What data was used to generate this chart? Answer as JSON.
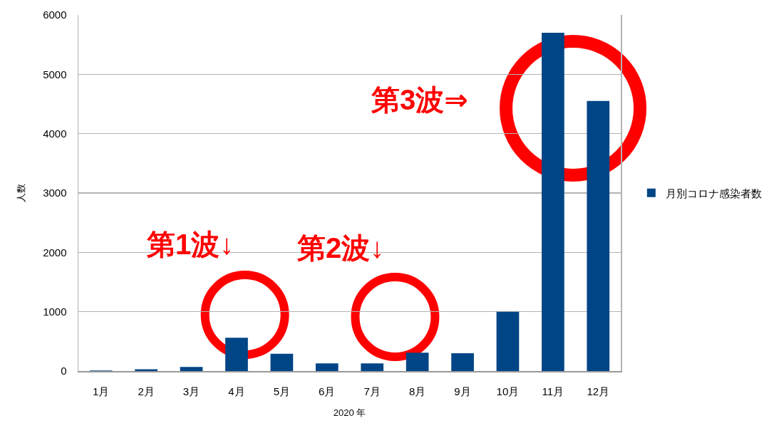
{
  "chart_data": {
    "type": "bar",
    "xlabel": "2020 年",
    "ylabel": "人数",
    "categories": [
      "1月",
      "2月",
      "3月",
      "4月",
      "5月",
      "6月",
      "7月",
      "8月",
      "9月",
      "10月",
      "11月",
      "12月"
    ],
    "series": [
      {
        "name": "月別コロナ感染者数",
        "color": "#004586",
        "values": [
          10,
          30,
          70,
          560,
          290,
          130,
          130,
          310,
          300,
          1000,
          5700,
          4550
        ]
      }
    ],
    "ylim": [
      0,
      6000
    ],
    "yticks": [
      0,
      1000,
      2000,
      3000,
      4000,
      5000,
      6000
    ],
    "grid": "y",
    "legend": "right",
    "annotations": [
      "第1波↓",
      "第2波↓",
      "第3波⇒"
    ]
  }
}
